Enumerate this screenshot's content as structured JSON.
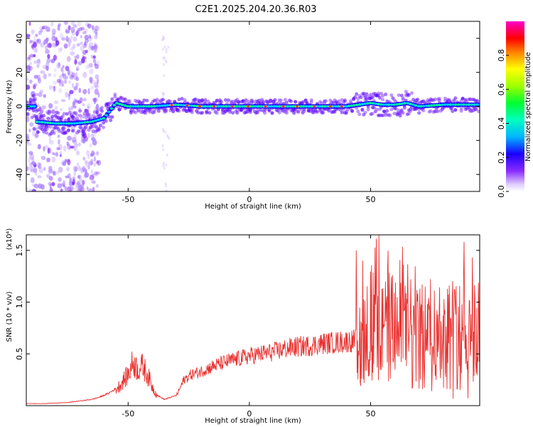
{
  "title": "C2E1.2025.204.20.36.R03",
  "chart_data": [
    {
      "type": "heatmap",
      "xlabel": "Height of straight line (km)",
      "ylabel": "Frequency (Hz)",
      "xlim": [
        -92,
        95
      ],
      "ylim": [
        -50,
        50
      ],
      "xticks": [
        -50,
        0,
        50
      ],
      "yticks": [
        -40,
        -20,
        0,
        20,
        40
      ],
      "colorbar": {
        "label": "Normalized spectral amplitude",
        "range": [
          0,
          1
        ],
        "ticks": [
          0.0,
          0.2,
          0.4,
          0.6,
          0.8
        ],
        "colors": [
          "#ffffff",
          "#e0d0ff",
          "#6a00ff",
          "#0000ff",
          "#00c8ff",
          "#00ff80",
          "#c0ff00",
          "#ffff00",
          "#ff8000",
          "#ff0000",
          "#ff00ff"
        ]
      },
      "ridge": [
        {
          "x": -88,
          "y": -9
        },
        {
          "x": -80,
          "y": -10
        },
        {
          "x": -72,
          "y": -10
        },
        {
          "x": -65,
          "y": -9
        },
        {
          "x": -60,
          "y": -7
        },
        {
          "x": -55,
          "y": 2
        },
        {
          "x": -50,
          "y": 0
        },
        {
          "x": -40,
          "y": 0
        },
        {
          "x": -30,
          "y": 1
        },
        {
          "x": -20,
          "y": 0
        },
        {
          "x": -10,
          "y": 0
        },
        {
          "x": 0,
          "y": 0
        },
        {
          "x": 10,
          "y": 0
        },
        {
          "x": 20,
          "y": 0
        },
        {
          "x": 30,
          "y": 0
        },
        {
          "x": 40,
          "y": 0
        },
        {
          "x": 45,
          "y": 1
        },
        {
          "x": 50,
          "y": 2
        },
        {
          "x": 55,
          "y": 1
        },
        {
          "x": 60,
          "y": 1
        },
        {
          "x": 65,
          "y": 2
        },
        {
          "x": 70,
          "y": 0
        },
        {
          "x": 80,
          "y": 1
        },
        {
          "x": 90,
          "y": 1
        },
        {
          "x": 95,
          "y": 1
        }
      ]
    },
    {
      "type": "line",
      "xlabel": "Height of straight line (km)",
      "ylabel": "SNR (10 * v/v)",
      "yscale_label": "(x10⁴)",
      "xlim": [
        -92,
        95
      ],
      "ylim": [
        0,
        1.65
      ],
      "xticks": [
        -50,
        0,
        50
      ],
      "yticks": [
        0.5,
        1.0,
        1.5
      ],
      "ytick_labels": [
        "0.5",
        "1.0",
        "1.5"
      ],
      "color": "#e8312f",
      "series": [
        {
          "x": [
            -92,
            -85,
            -75,
            -65,
            -62,
            -58,
            -54,
            -50,
            -48,
            -46,
            -44,
            -42,
            -40,
            -38,
            -35,
            -30,
            -27,
            -24,
            -20,
            -15,
            -10,
            -5,
            0,
            5,
            10,
            15,
            20,
            25,
            30,
            35,
            40,
            44,
            46,
            50,
            55,
            60,
            65,
            70,
            75,
            80,
            85,
            90,
            95
          ],
          "y": [
            0.02,
            0.02,
            0.03,
            0.06,
            0.08,
            0.12,
            0.18,
            0.3,
            0.42,
            0.35,
            0.38,
            0.3,
            0.18,
            0.1,
            0.06,
            0.1,
            0.25,
            0.3,
            0.33,
            0.38,
            0.42,
            0.45,
            0.48,
            0.5,
            0.52,
            0.55,
            0.57,
            0.58,
            0.6,
            0.61,
            0.62,
            0.63,
            0.7,
            0.8,
            0.78,
            0.75,
            0.72,
            0.7,
            0.68,
            0.7,
            0.72,
            0.7,
            0.74
          ]
        }
      ]
    }
  ]
}
